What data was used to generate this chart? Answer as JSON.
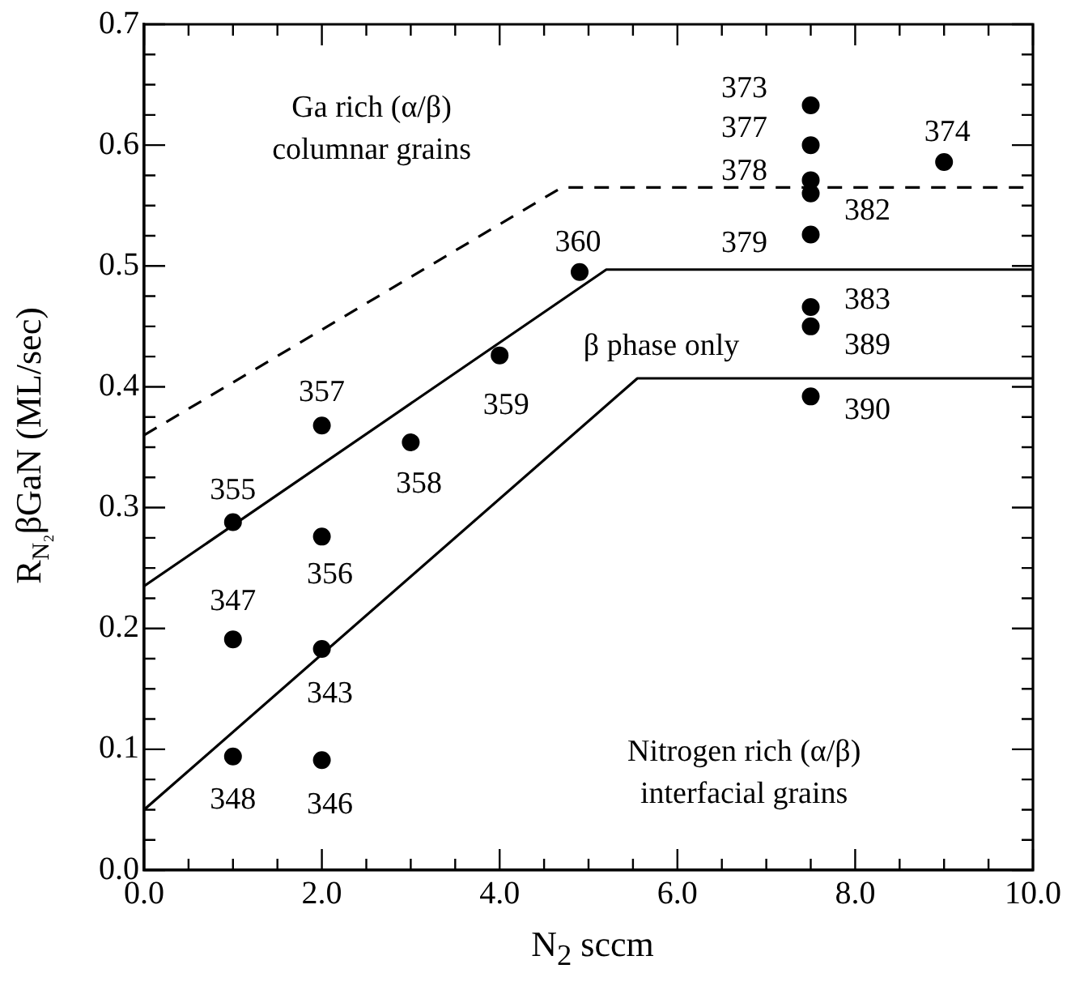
{
  "chart_data": {
    "type": "scatter",
    "xlabel": "N$_{2}$ sccm",
    "ylabel": "R$_{N₂}$βGaN (ML/sec)",
    "xlim": [
      0,
      10
    ],
    "ylim": [
      0,
      0.7
    ],
    "marker": "circle",
    "xticks": [
      {
        "value": 0,
        "label": "0.0"
      },
      {
        "value": 0.5,
        "label": null
      },
      {
        "value": 1,
        "label": null
      },
      {
        "value": 1.5,
        "label": null
      },
      {
        "value": 2,
        "label": "2.0"
      },
      {
        "value": 2.5,
        "label": null
      },
      {
        "value": 3,
        "label": null
      },
      {
        "value": 3.5,
        "label": null
      },
      {
        "value": 4,
        "label": "4.0"
      },
      {
        "value": 4.5,
        "label": null
      },
      {
        "value": 5,
        "label": null
      },
      {
        "value": 5.5,
        "label": null
      },
      {
        "value": 6,
        "label": "6.0"
      },
      {
        "value": 6.5,
        "label": null
      },
      {
        "value": 7,
        "label": null
      },
      {
        "value": 7.5,
        "label": null
      },
      {
        "value": 8,
        "label": "8.0"
      },
      {
        "value": 8.5,
        "label": null
      },
      {
        "value": 9,
        "label": null
      },
      {
        "value": 9.5,
        "label": null
      },
      {
        "value": 10,
        "label": "10.0"
      }
    ],
    "yticks": [
      {
        "value": 0,
        "label": "0.0"
      },
      {
        "value": 0.025,
        "label": null
      },
      {
        "value": 0.05,
        "label": null
      },
      {
        "value": 0.075,
        "label": null
      },
      {
        "value": 0.1,
        "label": "0.1"
      },
      {
        "value": 0.125,
        "label": null
      },
      {
        "value": 0.15,
        "label": null
      },
      {
        "value": 0.175,
        "label": null
      },
      {
        "value": 0.2,
        "label": "0.2"
      },
      {
        "value": 0.225,
        "label": null
      },
      {
        "value": 0.25,
        "label": null
      },
      {
        "value": 0.275,
        "label": null
      },
      {
        "value": 0.3,
        "label": "0.3"
      },
      {
        "value": 0.325,
        "label": null
      },
      {
        "value": 0.35,
        "label": null
      },
      {
        "value": 0.375,
        "label": null
      },
      {
        "value": 0.4,
        "label": "0.4"
      },
      {
        "value": 0.425,
        "label": null
      },
      {
        "value": 0.45,
        "label": null
      },
      {
        "value": 0.475,
        "label": null
      },
      {
        "value": 0.5,
        "label": "0.5"
      },
      {
        "value": 0.525,
        "label": null
      },
      {
        "value": 0.55,
        "label": null
      },
      {
        "value": 0.575,
        "label": null
      },
      {
        "value": 0.6,
        "label": "0.6"
      },
      {
        "value": 0.625,
        "label": null
      },
      {
        "value": 0.65,
        "label": null
      },
      {
        "value": 0.675,
        "label": null
      },
      {
        "value": 0.7,
        "label": "0.7"
      }
    ],
    "series": [
      {
        "type": "line",
        "color": "#000000",
        "line_style": "dashed",
        "marker": "none",
        "x": [
          0,
          4.7,
          10
        ],
        "values": [
          0.36,
          0.565,
          0.565
        ]
      },
      {
        "type": "line",
        "color": "#000000",
        "line_style": "solid",
        "marker": "none",
        "x": [
          0,
          5.2,
          10
        ],
        "values": [
          0.235,
          0.497,
          0.497
        ]
      },
      {
        "type": "line",
        "color": "#000000",
        "line_style": "solid",
        "marker": "none",
        "x": [
          0,
          5.55,
          10
        ],
        "values": [
          0.05,
          0.407,
          0.407
        ]
      },
      {
        "color": "#000000",
        "x": [
          1,
          1,
          1,
          2,
          2,
          2,
          2,
          3,
          4,
          4.9,
          7.5,
          7.5,
          7.5,
          7.5,
          7.5,
          7.5,
          7.5,
          7.5,
          9
        ],
        "values": [
          0.288,
          0.191,
          0.094,
          0.368,
          0.276,
          0.183,
          0.091,
          0.354,
          0.426,
          0.495,
          0.633,
          0.6,
          0.571,
          0.56,
          0.526,
          0.466,
          0.45,
          0.392,
          0.586
        ]
      }
    ],
    "annotations": [
      {
        "text": "355",
        "x": 1,
        "y": 0.288
      },
      {
        "text": "347",
        "x": 1,
        "y": 0.191
      },
      {
        "text": "348",
        "x": 1,
        "y": 0.094
      },
      {
        "text": "357",
        "x": 2,
        "y": 0.368
      },
      {
        "text": "356",
        "x": 2,
        "y": 0.276
      },
      {
        "text": "343",
        "x": 2,
        "y": 0.183
      },
      {
        "text": "346",
        "x": 2,
        "y": 0.091
      },
      {
        "text": "358",
        "x": 3,
        "y": 0.354
      },
      {
        "text": "359",
        "x": 4,
        "y": 0.426
      },
      {
        "text": "360",
        "x": 4.9,
        "y": 0.495
      },
      {
        "text": "373",
        "x": 7.5,
        "y": 0.633
      },
      {
        "text": "377",
        "x": 7.5,
        "y": 0.6
      },
      {
        "text": "378",
        "x": 7.5,
        "y": 0.571
      },
      {
        "text": "382",
        "x": 7.5,
        "y": 0.56
      },
      {
        "text": "379",
        "x": 7.5,
        "y": 0.526
      },
      {
        "text": "383",
        "x": 7.5,
        "y": 0.466
      },
      {
        "text": "389",
        "x": 7.5,
        "y": 0.45
      },
      {
        "text": "390",
        "x": 7.5,
        "y": 0.392
      },
      {
        "text": "374",
        "x": 9,
        "y": 0.586
      },
      "Ga rich (α/β)\ncolumnar grains",
      "β phase only",
      "Nitrogen rich (α/β)\ninterfacial grains"
    ]
  }
}
